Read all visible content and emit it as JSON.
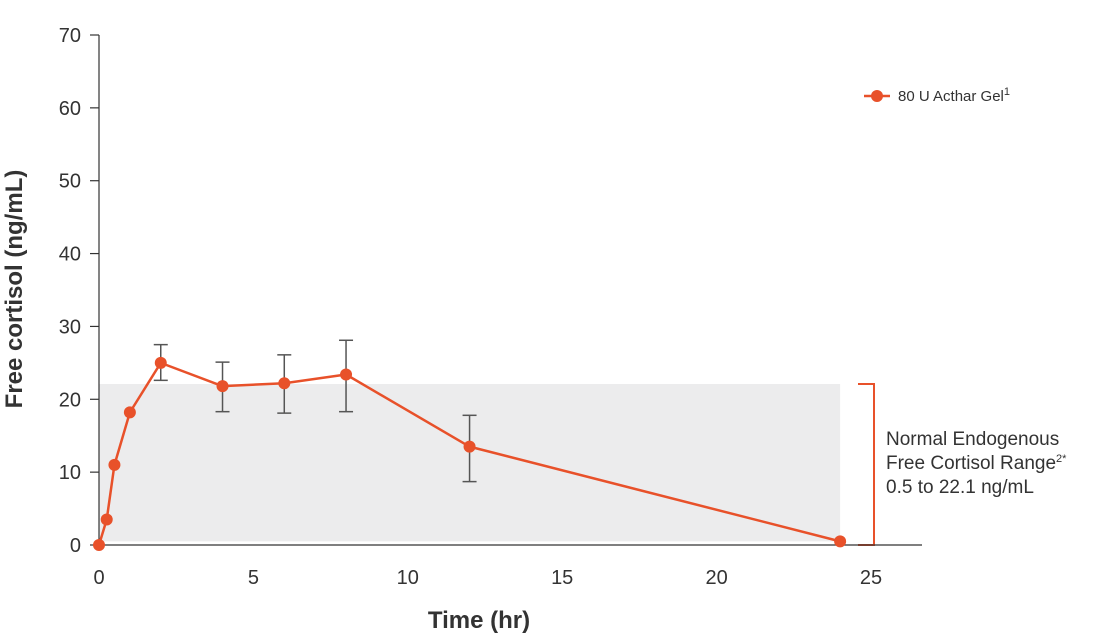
{
  "chart_data": {
    "type": "line",
    "title": "",
    "xlabel": "Time (hr)",
    "ylabel": "Free cortisol (ng/mL)",
    "xlim": [
      0,
      25
    ],
    "ylim": [
      0,
      70
    ],
    "x_ticks": [
      0,
      5,
      10,
      15,
      20,
      25
    ],
    "y_ticks": [
      0,
      10,
      20,
      30,
      40,
      50,
      60,
      70
    ],
    "grid": false,
    "legend_position": "top-right",
    "series": [
      {
        "name": "80 U Acthar Gel",
        "name_superscript": "1",
        "color": "#e8512a",
        "x": [
          0,
          0.25,
          0.5,
          1,
          2,
          4,
          6,
          8,
          12,
          24
        ],
        "y": [
          0,
          3.5,
          11,
          18.2,
          25,
          21.8,
          22.2,
          23.4,
          13.5,
          0.5
        ],
        "error_low": [
          null,
          null,
          null,
          null,
          22.6,
          18.3,
          18.1,
          18.3,
          8.7,
          null
        ],
        "error_high": [
          null,
          null,
          null,
          null,
          27.5,
          25.1,
          26.1,
          28.1,
          17.8,
          null
        ]
      }
    ],
    "reference_band": {
      "x_range": [
        0,
        24
      ],
      "y_range": [
        0.5,
        22.1
      ],
      "fill_color": "#ececed",
      "bracket_color": "#e8512a",
      "label_lines": [
        "Normal Endogenous",
        "Free Cortisol Range",
        "0.5 to 22.1 ng/mL"
      ],
      "label_superscript": "2*"
    }
  }
}
